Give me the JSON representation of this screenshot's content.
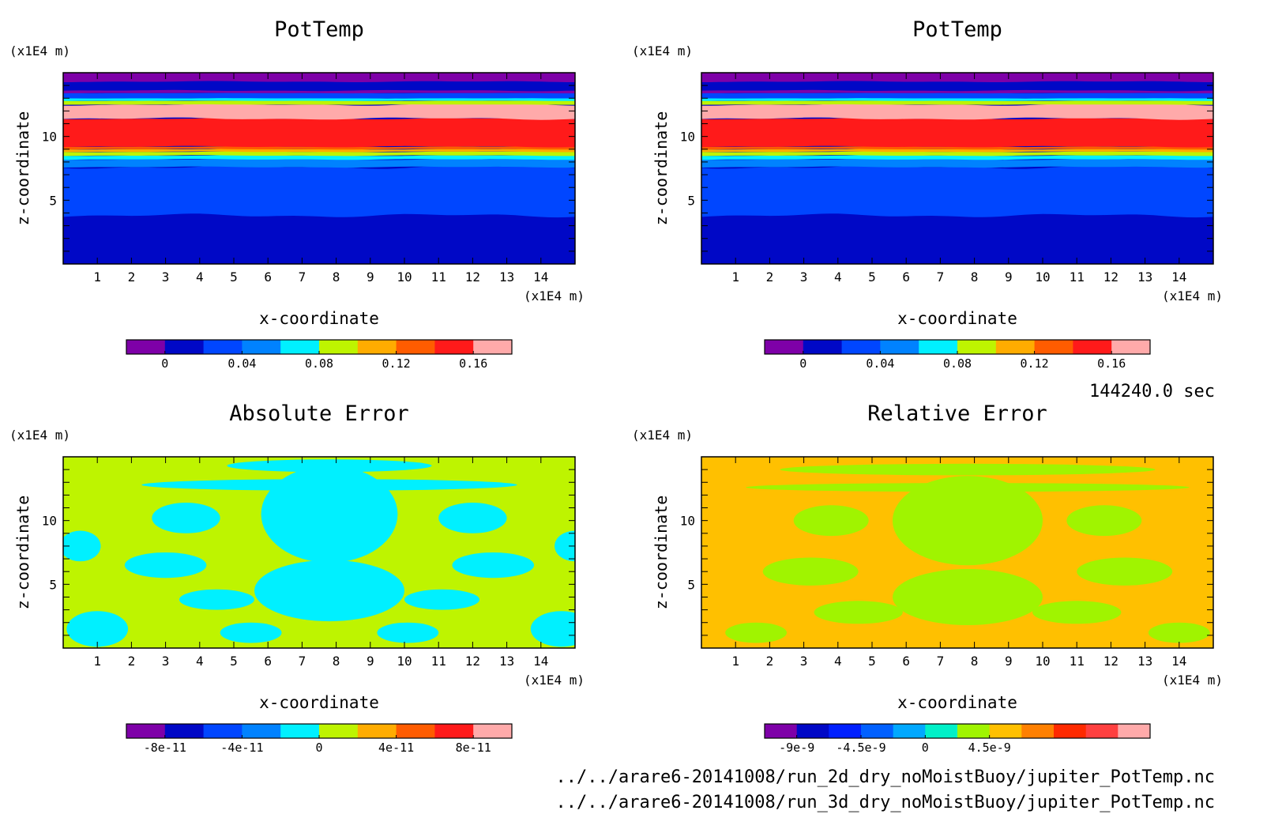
{
  "time_label": "144240.0 sec",
  "files": [
    "../../arare6-20141008/run_2d_dry_noMoistBuoy/jupiter_PotTemp.nc",
    "../../arare6-20141008/run_3d_dry_noMoistBuoy/jupiter_PotTemp.nc"
  ],
  "chart_data": [
    {
      "type": "heatmap",
      "title": "PotTemp",
      "xlabel": "x-coordinate",
      "ylabel": "z-coordinate",
      "x_unit": "(x1E4 m)",
      "y_unit": "(x1E4 m)",
      "xlim": [
        0,
        15
      ],
      "ylim": [
        0,
        15
      ],
      "x_ticks": [
        "1",
        "2",
        "3",
        "4",
        "5",
        "6",
        "7",
        "8",
        "9",
        "10",
        "11",
        "12",
        "13",
        "14"
      ],
      "y_ticks": [
        "5",
        "10"
      ],
      "grid": false,
      "legend": "colorbar-bottom",
      "colorbar_labels": [
        "0",
        "0.04",
        "0.08",
        "0.12",
        "0.16"
      ],
      "colorbar_colors": [
        "#7e00a8",
        "#0008c6",
        "#0046ff",
        "#0082ff",
        "#00f0ff",
        "#bef400",
        "#ffac00",
        "#ff5c00",
        "#ff1a1a",
        "#ffaaaa"
      ],
      "field": "potemp"
    },
    {
      "type": "heatmap",
      "title": "PotTemp",
      "xlabel": "x-coordinate",
      "ylabel": "z-coordinate",
      "x_unit": "(x1E4 m)",
      "y_unit": "(x1E4 m)",
      "xlim": [
        0,
        15
      ],
      "ylim": [
        0,
        15
      ],
      "x_ticks": [
        "1",
        "2",
        "3",
        "4",
        "5",
        "6",
        "7",
        "8",
        "9",
        "10",
        "11",
        "12",
        "13",
        "14"
      ],
      "y_ticks": [
        "5",
        "10"
      ],
      "grid": false,
      "legend": "colorbar-bottom",
      "colorbar_labels": [
        "0",
        "0.04",
        "0.08",
        "0.12",
        "0.16"
      ],
      "colorbar_colors": [
        "#7e00a8",
        "#0008c6",
        "#0046ff",
        "#0082ff",
        "#00f0ff",
        "#bef400",
        "#ffac00",
        "#ff5c00",
        "#ff1a1a",
        "#ffaaaa"
      ],
      "field": "potemp"
    },
    {
      "type": "heatmap",
      "title": "Absolute Error",
      "xlabel": "x-coordinate",
      "ylabel": "z-coordinate",
      "x_unit": "(x1E4 m)",
      "y_unit": "(x1E4 m)",
      "xlim": [
        0,
        15
      ],
      "ylim": [
        0,
        15
      ],
      "x_ticks": [
        "1",
        "2",
        "3",
        "4",
        "5",
        "6",
        "7",
        "8",
        "9",
        "10",
        "11",
        "12",
        "13",
        "14"
      ],
      "y_ticks": [
        "5",
        "10"
      ],
      "grid": false,
      "legend": "colorbar-bottom",
      "colorbar_labels": [
        "-8e-11",
        "-4e-11",
        "0",
        "4e-11",
        "8e-11"
      ],
      "colorbar_colors": [
        "#7e00a8",
        "#0008c6",
        "#0046ff",
        "#0082ff",
        "#00f0ff",
        "#bef400",
        "#ffac00",
        "#ff5c00",
        "#ff1a1a",
        "#ffaaaa"
      ],
      "field": "abs"
    },
    {
      "type": "heatmap",
      "title": "Relative Error",
      "xlabel": "x-coordinate",
      "ylabel": "z-coordinate",
      "x_unit": "(x1E4 m)",
      "y_unit": "(x1E4 m)",
      "xlim": [
        0,
        15
      ],
      "ylim": [
        0,
        15
      ],
      "x_ticks": [
        "1",
        "2",
        "3",
        "4",
        "5",
        "6",
        "7",
        "8",
        "9",
        "10",
        "11",
        "12",
        "13",
        "14"
      ],
      "y_ticks": [
        "5",
        "10"
      ],
      "grid": false,
      "legend": "colorbar-bottom",
      "colorbar_labels": [
        "-9e-9",
        "-4.5e-9",
        "0",
        "4.5e-9"
      ],
      "colorbar_colors": [
        "#7e00a8",
        "#0008c6",
        "#0020ff",
        "#0060ff",
        "#00a8ff",
        "#00f0c8",
        "#a0f400",
        "#ffc000",
        "#ff8000",
        "#ff2a00",
        "#ff4040",
        "#ffaaaa"
      ],
      "field": "rel"
    }
  ]
}
